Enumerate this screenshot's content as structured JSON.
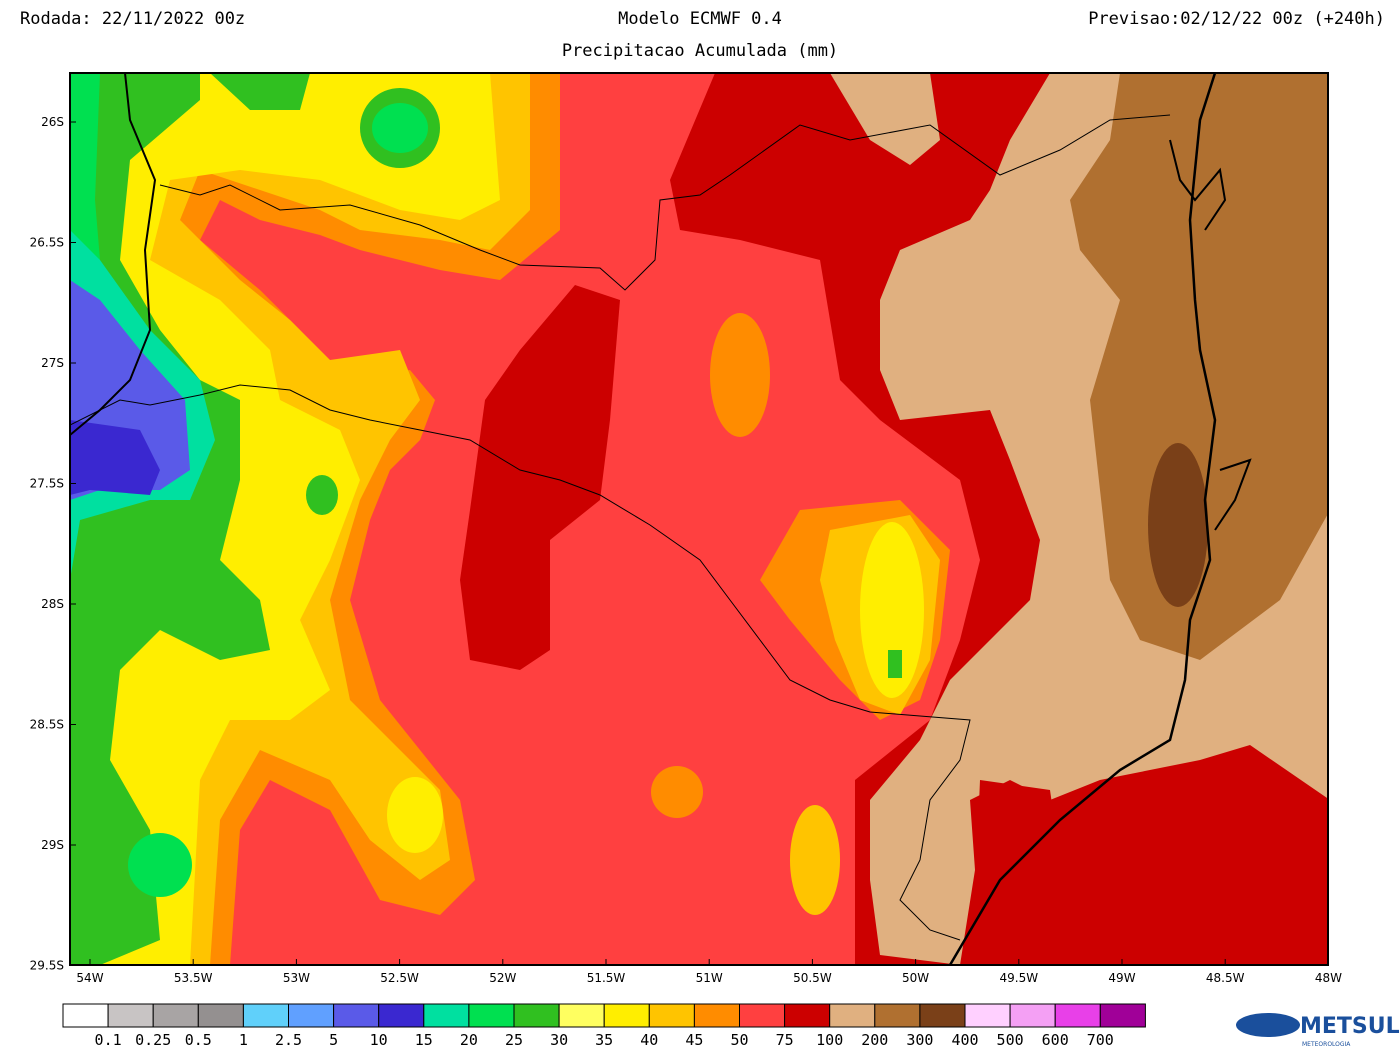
{
  "header": {
    "run": "Rodada: 22/11/2022 00z",
    "model": "Modelo ECMWF 0.4",
    "forecast": "Previsao:02/12/22 00z (+240h)",
    "subtitle": "Precipitacao Acumulada (mm)"
  },
  "map": {
    "lat_labels": [
      "26S",
      "26.5S",
      "27S",
      "27.5S",
      "28S",
      "28.5S",
      "29S",
      "29.5S"
    ],
    "lon_labels": [
      "54W",
      "53.5W",
      "53W",
      "52.5W",
      "52W",
      "51.5W",
      "51W",
      "50.5W",
      "50W",
      "49.5W",
      "49W",
      "48.5W",
      "48W"
    ]
  },
  "colorbar": {
    "colors": [
      "#ffffff",
      "#c8c4c4",
      "#a8a4a4",
      "#949090",
      "#60d0fa",
      "#60a0ff",
      "#5a5ae8",
      "#3a28d0",
      "#00e0a0",
      "#00e050",
      "#30c020",
      "#ffff60",
      "#ffee00",
      "#ffc400",
      "#ff8c00",
      "#ff4040",
      "#cc0000",
      "#e0b080",
      "#b07030",
      "#7a4018",
      "#ffd0ff",
      "#f4a0f4",
      "#e840e8",
      "#a00098"
    ],
    "labels": [
      "0.1",
      "0.25",
      "0.5",
      "1",
      "2.5",
      "5",
      "10",
      "15",
      "20",
      "25",
      "30",
      "35",
      "40",
      "45",
      "50",
      "75",
      "100",
      "200",
      "300",
      "400",
      "500",
      "600",
      "700"
    ]
  },
  "logo": {
    "name": "METSUL",
    "tagline": "METEOROLOGIA"
  }
}
